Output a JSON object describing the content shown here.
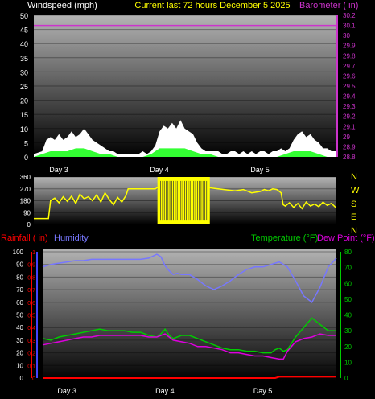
{
  "colors": {
    "wind_gust": "#ffffff",
    "wind_avg": "#33ff33",
    "barometer": "#cc33cc",
    "direction": "#ffff00",
    "rainfall": "#ff0000",
    "humidity": "#7777ff",
    "temperature": "#00cc00",
    "dewpoint": "#dd00dd",
    "title": "#ffff00",
    "tick": "#ffffff"
  },
  "chart_data": [
    {
      "type": "area",
      "title": "Current last 72 hours December 5 2025",
      "ylabel_left": "Windspeed (mph)",
      "ylabel_right": "Barometer ( in)",
      "x_range": [
        0,
        72
      ],
      "x_ticks": [
        {
          "x": 6,
          "label": "Day 3"
        },
        {
          "x": 30,
          "label": "Day 4"
        },
        {
          "x": 54,
          "label": "Day 5"
        }
      ],
      "ylim": [
        0,
        50
      ],
      "y_ticks": [
        0,
        5,
        10,
        15,
        20,
        25,
        30,
        35,
        40,
        45,
        50
      ],
      "y2lim": [
        28.8,
        30.2
      ],
      "y2_ticks": [
        "28.8",
        "28.9",
        "29",
        "29.1",
        "29.2",
        "29.3",
        "29.4",
        "29.5",
        "29.6",
        "29.7",
        "29.8",
        "29.9",
        "30",
        "30.1",
        "30.2"
      ],
      "series": [
        {
          "key": "gust",
          "color_key": "wind_gust",
          "x": [
            0,
            2,
            3,
            4,
            5,
            6,
            7,
            8,
            9,
            10,
            11,
            12,
            13,
            14,
            15,
            16,
            17,
            18,
            19,
            20,
            21,
            22,
            23,
            24,
            25,
            26,
            27,
            28,
            29,
            30,
            31,
            32,
            33,
            34,
            35,
            36,
            37,
            38,
            39,
            40,
            41,
            42,
            43,
            44,
            45,
            46,
            47,
            48,
            49,
            50,
            51,
            52,
            53,
            54,
            55,
            56,
            57,
            58,
            59,
            60,
            61,
            62,
            63,
            64,
            65,
            66,
            67,
            68,
            69,
            70,
            71,
            72
          ],
          "values": [
            1,
            2,
            6,
            7,
            6,
            8,
            6,
            7,
            9,
            7,
            8,
            10,
            8,
            6,
            5,
            4,
            3,
            2,
            2,
            1,
            1,
            1,
            1,
            1,
            1,
            2,
            1,
            2,
            4,
            9,
            11,
            10,
            12,
            10,
            13,
            10,
            9,
            8,
            5,
            3,
            2,
            2,
            2,
            2,
            1,
            1,
            2,
            2,
            1,
            2,
            1,
            2,
            1,
            2,
            2,
            1,
            2,
            2,
            3,
            2,
            3,
            6,
            8,
            9,
            7,
            8,
            6,
            5,
            3,
            3,
            2,
            2
          ]
        },
        {
          "key": "avg",
          "color_key": "wind_avg",
          "x": [
            0,
            2,
            4,
            6,
            8,
            10,
            12,
            14,
            16,
            18,
            20,
            22,
            24,
            26,
            28,
            30,
            32,
            34,
            36,
            38,
            40,
            42,
            44,
            46,
            48,
            50,
            52,
            54,
            56,
            58,
            60,
            62,
            64,
            66,
            68,
            70,
            72
          ],
          "values": [
            0,
            1,
            2,
            2,
            2,
            3,
            3,
            2,
            1,
            1,
            0,
            0,
            0,
            0,
            1,
            3,
            3,
            3,
            3,
            2,
            1,
            1,
            0,
            0,
            0,
            0,
            0,
            0,
            0,
            0,
            1,
            2,
            2,
            2,
            1,
            0,
            0
          ]
        },
        {
          "key": "barometer",
          "color_key": "barometer",
          "axis": "right",
          "x": [
            0,
            72
          ],
          "values": [
            30.1,
            30.1
          ]
        }
      ]
    },
    {
      "type": "line",
      "y_ticks": [
        0,
        90,
        180,
        270,
        360
      ],
      "ylim": [
        0,
        360
      ],
      "x_range": [
        0,
        72
      ],
      "compass_labels": [
        "N",
        "W",
        "S",
        "E",
        "N"
      ],
      "series": [
        {
          "key": "direction",
          "color_key": "direction",
          "x": [
            0,
            3,
            3.5,
            4,
            5,
            6,
            7,
            8,
            9,
            10,
            11,
            12,
            13,
            14,
            15,
            16,
            17,
            18,
            19,
            20,
            21,
            22,
            22.5,
            23,
            24,
            25,
            26,
            27,
            28,
            29,
            30,
            40,
            44,
            48,
            50,
            52,
            54,
            55,
            56,
            57,
            58,
            59,
            59.5,
            60,
            61,
            62,
            63,
            64,
            65,
            66,
            67,
            68,
            69,
            70,
            71,
            72
          ],
          "values": [
            45,
            45,
            45,
            180,
            200,
            165,
            210,
            175,
            215,
            160,
            230,
            195,
            210,
            180,
            225,
            170,
            240,
            190,
            150,
            205,
            170,
            220,
            270,
            270,
            270,
            270,
            270,
            270,
            270,
            270,
            290,
            285,
            270,
            255,
            265,
            240,
            250,
            265,
            255,
            270,
            265,
            240,
            150,
            140,
            165,
            130,
            160,
            120,
            170,
            140,
            155,
            135,
            170,
            145,
            160,
            130
          ]
        },
        {
          "key": "direction_swing",
          "color_key": "direction",
          "note": "Day 4 rapid swings 0-360",
          "x": [
            29.5,
            42
          ],
          "values": [
            0,
            360
          ]
        }
      ]
    },
    {
      "type": "line",
      "ylabel_left_1": "Rainfall ( in)",
      "ylabel_left_2": "Humidity",
      "ylabel_right_1": "Temperature (°F)",
      "ylabel_right_2": "Dew Point (°F)",
      "x_range": [
        0,
        72
      ],
      "x_ticks": [
        {
          "x": 6,
          "label": "Day 3"
        },
        {
          "x": 30,
          "label": "Day 4"
        },
        {
          "x": 54,
          "label": "Day 5"
        }
      ],
      "humidity_ticks": [
        0,
        10,
        20,
        30,
        40,
        50,
        60,
        70,
        80,
        90,
        100
      ],
      "rain_ticks": [
        "0",
        "0.1",
        "0.2",
        "0.3",
        "0.4",
        "0.5",
        "0.6",
        "0.7",
        "0.8",
        "0.9",
        "1"
      ],
      "temp_ticks": [
        0,
        10,
        20,
        30,
        40,
        50,
        60,
        70,
        80
      ],
      "ylim_humidity": [
        0,
        100
      ],
      "ylim_rain": [
        0,
        1
      ],
      "ylim_temp": [
        0,
        80
      ],
      "series": [
        {
          "key": "humidity",
          "name": "Humidity",
          "color_key": "humidity",
          "axis": "humidity",
          "x": [
            0,
            2,
            4,
            6,
            8,
            10,
            12,
            14,
            16,
            18,
            20,
            22,
            24,
            26,
            28,
            29,
            30,
            31,
            32,
            33,
            34,
            36,
            38,
            40,
            42,
            44,
            46,
            48,
            50,
            52,
            54,
            56,
            58,
            60,
            62,
            64,
            66,
            68,
            70,
            72
          ],
          "values": [
            88,
            90,
            91,
            92,
            93,
            93,
            94,
            94,
            94,
            94,
            94,
            94,
            94,
            95,
            98,
            96,
            89,
            85,
            82,
            83,
            82,
            82,
            78,
            73,
            70,
            73,
            77,
            82,
            86,
            88,
            88,
            90,
            92,
            88,
            77,
            65,
            60,
            72,
            88,
            95
          ]
        },
        {
          "key": "temperature",
          "name": "Temperature (°F)",
          "color_key": "temperature",
          "axis": "temp",
          "x": [
            0,
            2,
            4,
            6,
            8,
            10,
            12,
            14,
            16,
            18,
            20,
            22,
            24,
            26,
            28,
            29,
            30,
            31,
            32,
            34,
            36,
            38,
            40,
            42,
            44,
            46,
            48,
            50,
            52,
            54,
            56,
            57,
            58,
            59,
            60,
            62,
            64,
            66,
            68,
            70,
            72
          ],
          "values": [
            25,
            24,
            26,
            27,
            28,
            29,
            30,
            31,
            30,
            30,
            30,
            29,
            29,
            27,
            26,
            28,
            31,
            27,
            25,
            27,
            27,
            25,
            23,
            21,
            19,
            18,
            18,
            17,
            17,
            16,
            16,
            18,
            19,
            17,
            18,
            26,
            32,
            38,
            34,
            30,
            30
          ]
        },
        {
          "key": "dewpoint",
          "name": "Dew Point (°F)",
          "color_key": "dewpoint",
          "axis": "temp",
          "x": [
            0,
            2,
            4,
            6,
            8,
            10,
            12,
            14,
            16,
            18,
            20,
            22,
            24,
            26,
            28,
            29,
            30,
            31,
            32,
            34,
            36,
            38,
            40,
            42,
            44,
            46,
            48,
            50,
            52,
            54,
            56,
            58,
            59,
            60,
            62,
            64,
            66,
            68,
            70,
            72
          ],
          "values": [
            21,
            22,
            23,
            24,
            25,
            26,
            26,
            27,
            27,
            27,
            27,
            27,
            27,
            26,
            26,
            27,
            28,
            26,
            24,
            23,
            22,
            20,
            20,
            19,
            18,
            16,
            16,
            15,
            14,
            14,
            13,
            12,
            12,
            17,
            23,
            25,
            26,
            28,
            27,
            27
          ]
        },
        {
          "key": "rainfall",
          "name": "Rainfall ( in)",
          "color_key": "rainfall",
          "axis": "rain",
          "x": [
            0,
            57,
            58,
            72
          ],
          "values": [
            0,
            0,
            0.01,
            0.01
          ]
        }
      ]
    }
  ]
}
